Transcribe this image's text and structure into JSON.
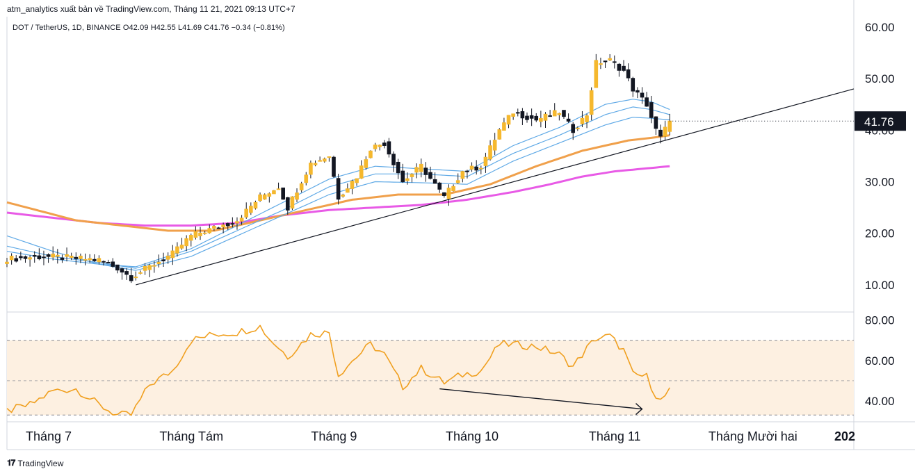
{
  "header": {
    "publisher_line": "atm_analytics xuất bản về TradingView.com, Tháng 11 21, 2021 09:13 UTC+7",
    "symbol_line": "DOT / TetherUS, 1D, BINANCE  O42.09  H42.55  L41.69  C41.76  −0.34 (−0.81%)"
  },
  "footer": {
    "logo_mark": "𝟏𝟕",
    "logo_text": "TradingView"
  },
  "colors": {
    "up": "#f5b82e",
    "down": "#131722",
    "ema_fast": "#5fa9e6",
    "ema_mid": "#f0a04b",
    "ema_slow": "#e85ae6",
    "rsi": "#f0a020",
    "rsi_band": "#fdf0e1",
    "trendline": "#131722"
  },
  "chart_data": [
    {
      "type": "candlestick",
      "title": "DOT / TetherUS, 1D, BINANCE",
      "last_price": "41.76",
      "ylim": [
        5,
        62
      ],
      "y_ticks": [
        "60.00",
        "50.00",
        "40.00",
        "30.00",
        "20.00",
        "10.00"
      ],
      "y_tick_values": [
        60,
        50,
        40,
        30,
        20,
        10
      ],
      "x_tick_labels": [
        "Tháng 7",
        "Tháng Tám",
        "Tháng 9",
        "Tháng 10",
        "Tháng 11",
        "Tháng Mười hai",
        "202"
      ],
      "x_tick_days": [
        0,
        31,
        62,
        92,
        123,
        153,
        184
      ],
      "first_day": 0,
      "last_day": 144,
      "close_anchors": [
        [
          0,
          15.0
        ],
        [
          8,
          15.5
        ],
        [
          14,
          15.2
        ],
        [
          20,
          14.8
        ],
        [
          24,
          13.3
        ],
        [
          27,
          11.4
        ],
        [
          31,
          13.5
        ],
        [
          36,
          16.0
        ],
        [
          40,
          19.5
        ],
        [
          45,
          21.0
        ],
        [
          50,
          22.5
        ],
        [
          55,
          27.0
        ],
        [
          59,
          29.0
        ],
        [
          61,
          25.0
        ],
        [
          66,
          33.5
        ],
        [
          70,
          35.0
        ],
        [
          72,
          27.0
        ],
        [
          76,
          31.0
        ],
        [
          79,
          36.5
        ],
        [
          82,
          37.5
        ],
        [
          86,
          30.0
        ],
        [
          90,
          33.0
        ],
        [
          95,
          27.0
        ],
        [
          99,
          32.0
        ],
        [
          103,
          33.0
        ],
        [
          107,
          40.0
        ],
        [
          110,
          43.5
        ],
        [
          115,
          42.0
        ],
        [
          120,
          43.5
        ],
        [
          123,
          40.0
        ],
        [
          126,
          43.0
        ],
        [
          128,
          53.0
        ],
        [
          131,
          53.5
        ],
        [
          134,
          51.5
        ],
        [
          136,
          48.0
        ],
        [
          139,
          45.0
        ],
        [
          141,
          40.0
        ],
        [
          142,
          38.5
        ],
        [
          144,
          41.76
        ]
      ],
      "ema_fast_anchors": [
        [
          0,
          19.5
        ],
        [
          10,
          16.5
        ],
        [
          20,
          14.0
        ],
        [
          28,
          13.5
        ],
        [
          40,
          17.0
        ],
        [
          50,
          21.5
        ],
        [
          60,
          26.0
        ],
        [
          70,
          30.5
        ],
        [
          80,
          33.0
        ],
        [
          90,
          32.5
        ],
        [
          100,
          32.0
        ],
        [
          110,
          37.0
        ],
        [
          120,
          40.5
        ],
        [
          130,
          45.0
        ],
        [
          136,
          46.0
        ],
        [
          140,
          45.5
        ],
        [
          144,
          44.0
        ]
      ],
      "ema_fast2_anchors": [
        [
          0,
          17.5
        ],
        [
          10,
          15.5
        ],
        [
          20,
          14.3
        ],
        [
          28,
          13.2
        ],
        [
          40,
          16.5
        ],
        [
          50,
          20.5
        ],
        [
          60,
          24.5
        ],
        [
          70,
          29.0
        ],
        [
          80,
          31.5
        ],
        [
          90,
          31.5
        ],
        [
          100,
          31.0
        ],
        [
          110,
          35.5
        ],
        [
          120,
          39.0
        ],
        [
          130,
          43.0
        ],
        [
          136,
          44.5
        ],
        [
          140,
          44.0
        ],
        [
          144,
          43.0
        ]
      ],
      "ema_fast3_anchors": [
        [
          0,
          16.5
        ],
        [
          10,
          15.0
        ],
        [
          20,
          14.0
        ],
        [
          28,
          12.8
        ],
        [
          40,
          15.5
        ],
        [
          50,
          19.5
        ],
        [
          60,
          23.5
        ],
        [
          70,
          27.5
        ],
        [
          80,
          30.0
        ],
        [
          90,
          29.8
        ],
        [
          100,
          29.5
        ],
        [
          110,
          34.0
        ],
        [
          120,
          37.5
        ],
        [
          130,
          41.0
        ],
        [
          136,
          42.5
        ],
        [
          140,
          42.3
        ],
        [
          144,
          42.0
        ]
      ],
      "ema_mid_anchors": [
        [
          0,
          26.0
        ],
        [
          15,
          22.5
        ],
        [
          25,
          21.5
        ],
        [
          35,
          20.5
        ],
        [
          45,
          20.5
        ],
        [
          55,
          22.5
        ],
        [
          65,
          24.5
        ],
        [
          75,
          26.5
        ],
        [
          85,
          27.5
        ],
        [
          95,
          27.5
        ],
        [
          105,
          29.5
        ],
        [
          115,
          33.0
        ],
        [
          125,
          36.0
        ],
        [
          135,
          38.0
        ],
        [
          140,
          38.5
        ],
        [
          144,
          39.0
        ]
      ],
      "ema_slow_anchors": [
        [
          0,
          24.0
        ],
        [
          10,
          23.0
        ],
        [
          20,
          22.0
        ],
        [
          30,
          21.5
        ],
        [
          40,
          21.5
        ],
        [
          50,
          22.0
        ],
        [
          60,
          23.5
        ],
        [
          70,
          24.5
        ],
        [
          80,
          25.0
        ],
        [
          90,
          25.5
        ],
        [
          100,
          26.5
        ],
        [
          110,
          28.0
        ],
        [
          118,
          29.5
        ],
        [
          125,
          31.0
        ],
        [
          132,
          32.0
        ],
        [
          138,
          32.5
        ],
        [
          144,
          33.0
        ]
      ],
      "trendline": [
        [
          28,
          10.0
        ],
        [
          184,
          48.0
        ]
      ]
    },
    {
      "type": "line",
      "title": "RSI",
      "ylim": [
        30,
        83
      ],
      "y_ticks": [
        "80.00",
        "60.00",
        "40.00"
      ],
      "y_tick_values": [
        80,
        60,
        40
      ],
      "band": [
        33,
        70
      ],
      "midline": 50,
      "rsi_anchors": [
        [
          0,
          35
        ],
        [
          5,
          38
        ],
        [
          10,
          45
        ],
        [
          15,
          46
        ],
        [
          20,
          38
        ],
        [
          24,
          33
        ],
        [
          27,
          33
        ],
        [
          31,
          48
        ],
        [
          36,
          55
        ],
        [
          40,
          70
        ],
        [
          45,
          73
        ],
        [
          50,
          74
        ],
        [
          55,
          77
        ],
        [
          57,
          71
        ],
        [
          61,
          62
        ],
        [
          66,
          73
        ],
        [
          70,
          74
        ],
        [
          72,
          53
        ],
        [
          76,
          62
        ],
        [
          79,
          68
        ],
        [
          82,
          63
        ],
        [
          86,
          47
        ],
        [
          90,
          56
        ],
        [
          95,
          49
        ],
        [
          99,
          53
        ],
        [
          103,
          55
        ],
        [
          107,
          68
        ],
        [
          110,
          68
        ],
        [
          115,
          67
        ],
        [
          120,
          63
        ],
        [
          123,
          57
        ],
        [
          126,
          66
        ],
        [
          128,
          71
        ],
        [
          131,
          72
        ],
        [
          134,
          65
        ],
        [
          136,
          53
        ],
        [
          139,
          52
        ],
        [
          141,
          43
        ],
        [
          142,
          40
        ],
        [
          144,
          45
        ]
      ],
      "divergence_arrow": [
        [
          94,
          46
        ],
        [
          138,
          36
        ]
      ]
    }
  ]
}
